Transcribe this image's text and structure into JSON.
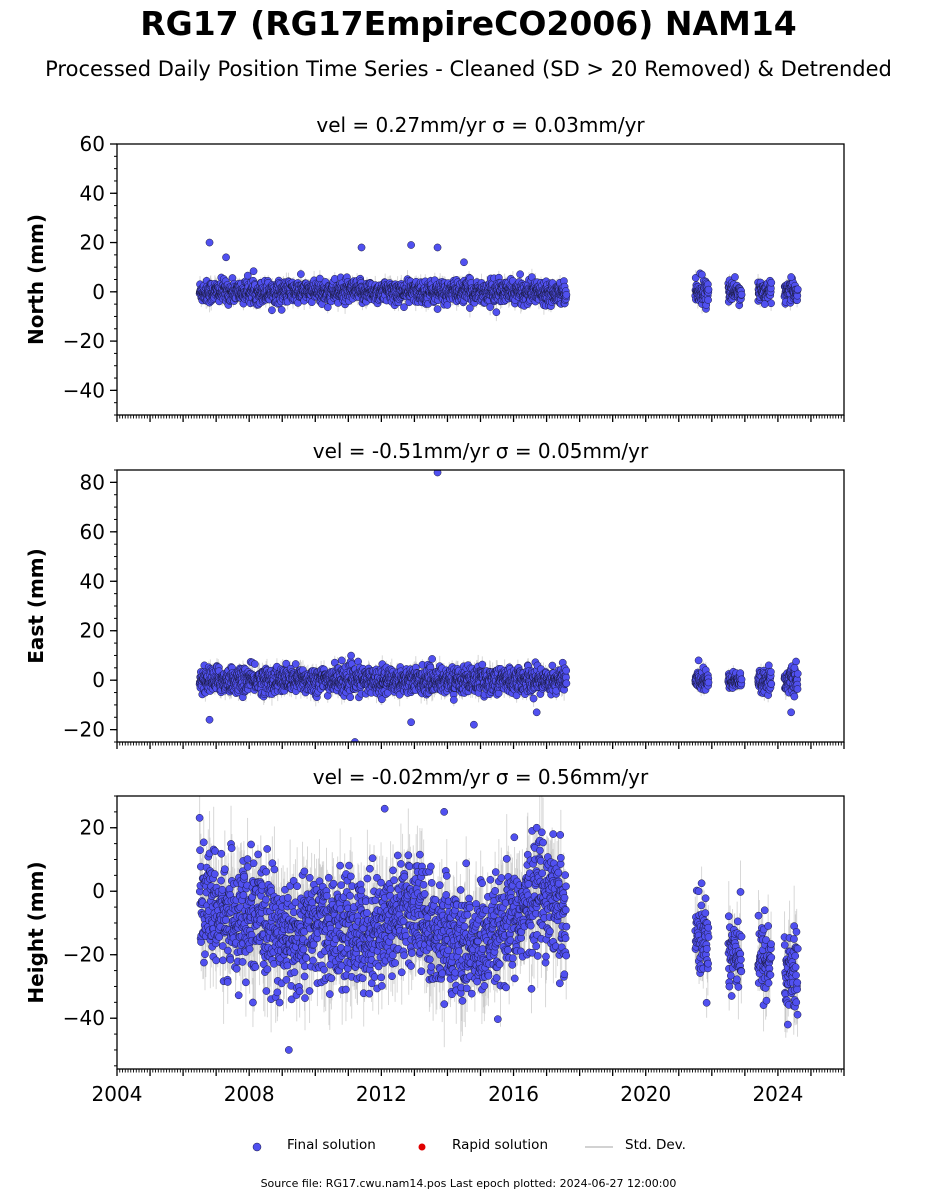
{
  "title": "RG17 (RG17EmpireCO2006) NAM14",
  "subtitle": "Processed Daily Position Time Series - Cleaned (SD > 20 Removed) & Detrended",
  "legend": {
    "final": "Final solution",
    "rapid": "Rapid solution",
    "std": "Std. Dev."
  },
  "source_note": "Source file: RG17.cwu.nam14.pos  Last epoch plotted: 2024-06-27 12:00:00",
  "colors": {
    "final_fill": "#5050f0",
    "final_edge": "#1a1a40",
    "rapid_fill": "#e00000",
    "std_dev": "#b8b8b8"
  },
  "chart_data": [
    {
      "type": "scatter",
      "panel": "north",
      "title": "vel = 0.27mm/yr   σ = 0.03mm/yr",
      "ylabel": "North (mm)",
      "xlim": [
        2004,
        2026
      ],
      "ylim": [
        -50,
        60
      ],
      "yticks": [
        -40,
        -20,
        0,
        20,
        40,
        60
      ],
      "ytick_labels": [
        "−40",
        "−20",
        "0",
        "20",
        "40",
        "60"
      ],
      "grid": false,
      "segments": [
        {
          "start": 2006.5,
          "end": 2017.6,
          "spread": 2.2
        },
        {
          "start": 2021.5,
          "end": 2021.9,
          "spread": 2.2
        },
        {
          "start": 2022.5,
          "end": 2022.9,
          "spread": 1.8
        },
        {
          "start": 2023.4,
          "end": 2023.8,
          "spread": 2.0
        },
        {
          "start": 2024.2,
          "end": 2024.6,
          "spread": 1.9
        }
      ],
      "highlighted_points": [
        {
          "x": 2006.8,
          "y": 20
        },
        {
          "x": 2007.3,
          "y": 14
        },
        {
          "x": 2011.4,
          "y": 18
        },
        {
          "x": 2012.9,
          "y": 19
        },
        {
          "x": 2013.7,
          "y": 18
        },
        {
          "x": 2013.7,
          "y": -7
        },
        {
          "x": 2014.5,
          "y": 12
        },
        {
          "x": 2021.7,
          "y": 7
        },
        {
          "x": 2022.7,
          "y": 6
        },
        {
          "x": 2023.6,
          "y": -5
        },
        {
          "x": 2024.4,
          "y": 6
        }
      ]
    },
    {
      "type": "scatter",
      "panel": "east",
      "title": "vel = -0.51mm/yr   σ = 0.05mm/yr",
      "ylabel": "East (mm)",
      "xlim": [
        2004,
        2026
      ],
      "ylim": [
        -25,
        85
      ],
      "yticks": [
        -20,
        0,
        20,
        40,
        60,
        80
      ],
      "ytick_labels": [
        "−20",
        "0",
        "20",
        "40",
        "60",
        "80"
      ],
      "grid": false,
      "segments": [
        {
          "start": 2006.5,
          "end": 2017.6,
          "spread": 2.6
        },
        {
          "start": 2021.5,
          "end": 2021.9,
          "spread": 2.0
        },
        {
          "start": 2022.5,
          "end": 2022.9,
          "spread": 1.5
        },
        {
          "start": 2023.4,
          "end": 2023.8,
          "spread": 2.2
        },
        {
          "start": 2024.2,
          "end": 2024.6,
          "spread": 2.5
        }
      ],
      "highlighted_points": [
        {
          "x": 2013.7,
          "y": 84
        },
        {
          "x": 2011.2,
          "y": -25
        },
        {
          "x": 2012.9,
          "y": -17
        },
        {
          "x": 2014.8,
          "y": -18
        },
        {
          "x": 2006.8,
          "y": -16
        },
        {
          "x": 2010.8,
          "y": 8
        },
        {
          "x": 2021.6,
          "y": 8
        },
        {
          "x": 2024.4,
          "y": -13
        },
        {
          "x": 2024.5,
          "y": 5
        },
        {
          "x": 2016.7,
          "y": -13
        }
      ]
    },
    {
      "type": "scatter",
      "panel": "height",
      "title": "vel = -0.02mm/yr   σ = 0.56mm/yr",
      "ylabel": "Height (mm)",
      "xlim": [
        2004,
        2026
      ],
      "ylim": [
        -56,
        30
      ],
      "yticks": [
        -40,
        -20,
        0,
        20
      ],
      "ytick_labels": [
        "−40",
        "−20",
        "0",
        "20"
      ],
      "xticks": [
        2004,
        2008,
        2012,
        2016,
        2020,
        2024
      ],
      "xtick_labels": [
        "2004",
        "2008",
        "2012",
        "2016",
        "2020",
        "2024"
      ],
      "grid": false,
      "segments": [
        {
          "start": 2006.5,
          "end": 2017.6,
          "spread": 8.5
        },
        {
          "start": 2021.5,
          "end": 2021.9,
          "spread": 6.0
        },
        {
          "start": 2022.5,
          "end": 2022.9,
          "spread": 6.5
        },
        {
          "start": 2023.4,
          "end": 2023.8,
          "spread": 6.0
        },
        {
          "start": 2024.2,
          "end": 2024.6,
          "spread": 7.0
        }
      ],
      "trend_knots": [
        {
          "x": 2006.5,
          "y": -4
        },
        {
          "x": 2007.3,
          "y": -8
        },
        {
          "x": 2008.5,
          "y": -10
        },
        {
          "x": 2009.3,
          "y": -16
        },
        {
          "x": 2010.0,
          "y": -11
        },
        {
          "x": 2011.0,
          "y": -13
        },
        {
          "x": 2012.0,
          "y": -12
        },
        {
          "x": 2012.8,
          "y": -4
        },
        {
          "x": 2013.6,
          "y": -14
        },
        {
          "x": 2014.5,
          "y": -17
        },
        {
          "x": 2015.3,
          "y": -17
        },
        {
          "x": 2016.0,
          "y": -10
        },
        {
          "x": 2016.8,
          "y": 1
        },
        {
          "x": 2017.6,
          "y": -5
        },
        {
          "x": 2021.5,
          "y": -14
        },
        {
          "x": 2021.9,
          "y": -15
        },
        {
          "x": 2022.5,
          "y": -18
        },
        {
          "x": 2022.9,
          "y": -18
        },
        {
          "x": 2023.4,
          "y": -22
        },
        {
          "x": 2023.8,
          "y": -22
        },
        {
          "x": 2024.2,
          "y": -25
        },
        {
          "x": 2024.6,
          "y": -26
        }
      ],
      "highlighted_points": [
        {
          "x": 2009.2,
          "y": -50
        },
        {
          "x": 2012.1,
          "y": 26
        },
        {
          "x": 2013.9,
          "y": 25
        },
        {
          "x": 2016.7,
          "y": 20
        },
        {
          "x": 2017.2,
          "y": 18
        },
        {
          "x": 2023.6,
          "y": -6
        },
        {
          "x": 2024.3,
          "y": -42
        },
        {
          "x": 2021.6,
          "y": 0
        },
        {
          "x": 2022.6,
          "y": -33
        },
        {
          "x": 2017.4,
          "y": -29
        }
      ]
    }
  ]
}
